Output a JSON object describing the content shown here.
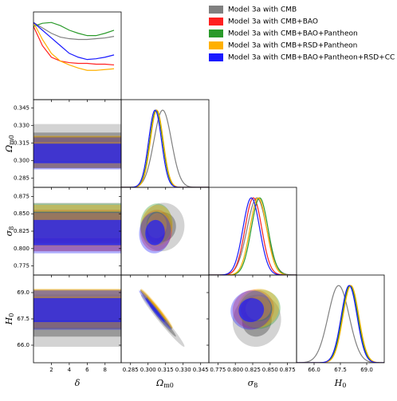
{
  "chart_data": {
    "type": "corner",
    "parameters": [
      {
        "key": "delta",
        "label": {
          "symbol": "δ"
        },
        "lim": [
          0,
          9.8
        ],
        "ticks": [
          2,
          4,
          6,
          8
        ],
        "curve_x": [
          0,
          1,
          2,
          3,
          4,
          5,
          6,
          7,
          8,
          9
        ]
      },
      {
        "key": "omega",
        "label": {
          "symbol": "Ω",
          "subscript": "m0"
        },
        "lim": [
          0.277,
          0.352
        ],
        "ticks": [
          0.285,
          {
            "value": 0.3,
            "label": "0.300"
          },
          0.315,
          {
            "value": 0.33,
            "label": "0.330"
          },
          0.345
        ]
      },
      {
        "key": "sigma8",
        "label": {
          "symbol": "σ",
          "subscript": "8"
        },
        "lim": [
          0.762,
          0.888
        ],
        "ticks": [
          0.775,
          {
            "value": 0.8,
            "label": "0.800"
          },
          0.825,
          {
            "value": 0.85,
            "label": "0.850"
          },
          0.875
        ]
      },
      {
        "key": "H0",
        "label": {
          "symbol": "H",
          "subscript": "0"
        },
        "lim": [
          65,
          70
        ],
        "ticks": [
          {
            "value": 66,
            "label": "66.0"
          },
          67.5,
          {
            "value": 69,
            "label": "69.0"
          }
        ]
      }
    ],
    "series": [
      {
        "name": "Model 3a with CMB",
        "color": "#808080",
        "delta_curve": [
          1.0,
          0.93,
          0.86,
          0.81,
          0.79,
          0.78,
          0.78,
          0.79,
          0.8,
          0.82
        ],
        "mean": {
          "omega": 0.3125,
          "sigma8": 0.831,
          "H0": 67.4
        },
        "sd": {
          "omega": 0.0075,
          "sigma8": 0.014,
          "H0": 0.6
        },
        "rho": {
          "omega_sigma8": 0.05,
          "omega_H0": -0.98,
          "sigma8_H0": 0.05
        }
      },
      {
        "name": "Model 3a with CMB+BAO",
        "color": "#ff2020",
        "delta_curve": [
          0.95,
          0.7,
          0.55,
          0.5,
          0.48,
          0.47,
          0.47,
          0.46,
          0.46,
          0.45
        ],
        "mean": {
          "omega": 0.307,
          "sigma8": 0.826,
          "H0": 68.05
        },
        "sd": {
          "omega": 0.0055,
          "sigma8": 0.012,
          "H0": 0.45
        },
        "rho": {
          "omega_sigma8": 0.05,
          "omega_H0": -0.98,
          "sigma8_H0": 0.05
        }
      },
      {
        "name": "Model 3a with CMB+BAO+Pantheon",
        "color": "#2a9a2a",
        "delta_curve": [
          0.95,
          0.99,
          1.0,
          0.96,
          0.9,
          0.86,
          0.83,
          0.83,
          0.86,
          0.9
        ],
        "mean": {
          "omega": 0.307,
          "sigma8": 0.835,
          "H0": 68.05
        },
        "sd": {
          "omega": 0.0055,
          "sigma8": 0.012,
          "H0": 0.45
        },
        "rho": {
          "omega_sigma8": 0.05,
          "omega_H0": -0.98,
          "sigma8_H0": 0.05
        }
      },
      {
        "name": "Model 3a with CMB+RSD+Pantheon",
        "color": "#ffb000",
        "delta_curve": [
          1.0,
          0.78,
          0.6,
          0.5,
          0.45,
          0.41,
          0.38,
          0.38,
          0.39,
          0.4
        ],
        "mean": {
          "omega": 0.3075,
          "sigma8": 0.833,
          "H0": 68.1
        },
        "sd": {
          "omega": 0.0055,
          "sigma8": 0.012,
          "H0": 0.45
        },
        "rho": {
          "omega_sigma8": 0.05,
          "omega_H0": -0.98,
          "sigma8_H0": 0.05
        }
      },
      {
        "name": "Model 3a with CMB+BAO+Pantheon+RSD+CC",
        "color": "#1a1aff",
        "delta_curve": [
          1.0,
          0.9,
          0.8,
          0.7,
          0.6,
          0.55,
          0.52,
          0.53,
          0.55,
          0.58
        ],
        "mean": {
          "omega": 0.306,
          "sigma8": 0.823,
          "H0": 68.0
        },
        "sd": {
          "omega": 0.0055,
          "sigma8": 0.012,
          "H0": 0.45
        },
        "rho": {
          "omega_sigma8": 0.05,
          "omega_H0": -0.98,
          "sigma8_H0": 0.05
        }
      }
    ]
  }
}
